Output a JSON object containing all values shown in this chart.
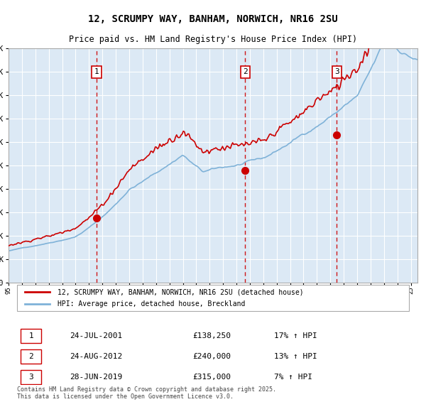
{
  "title_line1": "12, SCRUMPY WAY, BANHAM, NORWICH, NR16 2SU",
  "title_line2": "Price paid vs. HM Land Registry's House Price Index (HPI)",
  "legend_red": "12, SCRUMPY WAY, BANHAM, NORWICH, NR16 2SU (detached house)",
  "legend_blue": "HPI: Average price, detached house, Breckland",
  "transactions": [
    {
      "label": "1",
      "date": "24-JUL-2001",
      "price": 138250,
      "hpi_pct": "17% ↑ HPI",
      "x_year": 2001.56
    },
    {
      "label": "2",
      "date": "24-AUG-2012",
      "price": 240000,
      "hpi_pct": "13% ↑ HPI",
      "x_year": 2012.65
    },
    {
      "label": "3",
      "date": "28-JUN-2019",
      "price": 315000,
      "hpi_pct": "7% ↑ HPI",
      "x_year": 2019.49
    }
  ],
  "footnote": "Contains HM Land Registry data © Crown copyright and database right 2025.\nThis data is licensed under the Open Government Licence v3.0.",
  "bg_color": "#dce9f5",
  "red_color": "#cc0000",
  "blue_color": "#7fb2d8",
  "grid_color": "#ffffff",
  "ylim": [
    0,
    500000
  ],
  "xlim_start": 1995.0,
  "xlim_end": 2025.5
}
